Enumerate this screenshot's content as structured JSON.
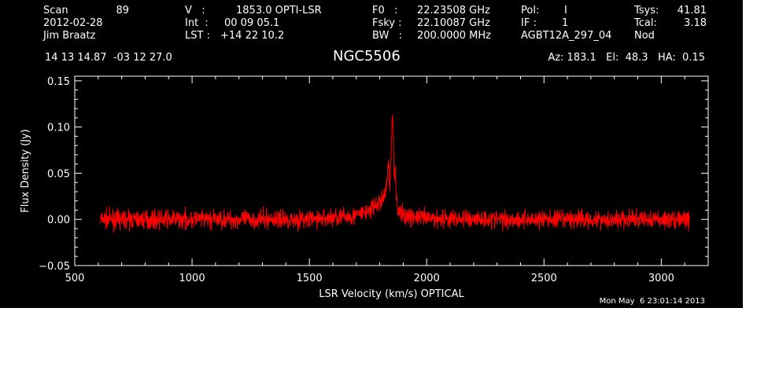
{
  "header": {
    "scan_label": "Scan",
    "scan_value": "89",
    "date": "2012-02-28",
    "observer": "Jim Braatz",
    "v_label": "V   :",
    "v_value": "1853.0 OPTI-LSR",
    "int_label": "Int  :",
    "int_value": "00 09 05.1",
    "lst_label": "LST :",
    "lst_value": "+14 22 10.2",
    "f0_label": "F0   :",
    "f0_value": "22.23508 GHz",
    "fsky_label": "Fsky :",
    "fsky_value": "22.10087 GHz",
    "bw_label": "BW   :",
    "bw_value": "200.0000 MHz",
    "pol_label": "Pol:",
    "pol_value": "I",
    "if_label": "IF :",
    "if_value": "1",
    "project": "AGBT12A_297_04",
    "tsys_label": "Tsys:",
    "tsys_value": "41.81",
    "tcal_label": "Tcal:",
    "tcal_value": "3.18",
    "mode": "Nod",
    "coords": "14 13 14.87  -03 12 27.0",
    "source": "NGC5506",
    "az_el_ha": "Az: 183.1   El:  48.3   HA:  0.15",
    "timestamp": "Mon May  6 23:01:14 2013"
  },
  "colors": {
    "background": "#000000",
    "axes": "#ffffff",
    "trace": "#ff0000"
  },
  "chart_data": {
    "type": "line",
    "title": "NGC5506",
    "xlabel": "LSR Velocity (km/s) OPTICAL",
    "ylabel": "Flux Density (Jy)",
    "xlim": [
      500,
      3200
    ],
    "ylim": [
      -0.05,
      0.155
    ],
    "x_ticks": [
      500,
      1000,
      1500,
      2000,
      2500,
      3000
    ],
    "x_tick_labels": [
      "500",
      "1000",
      "1500",
      "2000",
      "2500",
      "3000"
    ],
    "y_ticks": [
      -0.05,
      0.0,
      0.05,
      0.1,
      0.15
    ],
    "y_tick_labels": [
      "−0.05",
      "0.00",
      "0.05",
      "0.10",
      "0.15"
    ],
    "grid": false,
    "x_range": [
      610,
      3120
    ],
    "noise_rms": 0.005,
    "series": [
      {
        "color": "#ff0000",
        "x": [
          610,
          1000,
          1500,
          1700,
          1760,
          1800,
          1820,
          1830,
          1838,
          1843,
          1848,
          1852,
          1855,
          1858,
          1861,
          1865,
          1872,
          1880,
          1900,
          2000,
          2500,
          3000,
          3120
        ],
        "y": [
          0.0,
          0.0,
          0.0,
          0.004,
          0.01,
          0.018,
          0.025,
          0.04,
          0.067,
          0.03,
          0.072,
          0.095,
          0.117,
          0.09,
          0.045,
          0.06,
          0.02,
          0.01,
          0.004,
          0.001,
          0.0,
          0.0,
          0.0
        ]
      }
    ]
  }
}
